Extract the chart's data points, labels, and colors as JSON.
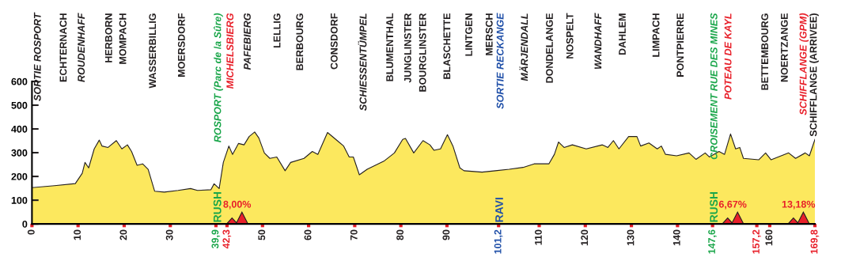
{
  "chart_data": {
    "type": "area",
    "x": [
      0,
      4.9,
      9.4,
      10.9,
      11.5,
      12.3,
      13.5,
      14.6,
      15.2,
      16.5,
      18.3,
      19.5,
      20.7,
      21.6,
      22.8,
      24.0,
      25.2,
      26.6,
      28.7,
      31.7,
      34.4,
      35.9,
      38.8,
      39.5,
      40.6,
      41.5,
      42.7,
      43.5,
      44.8,
      46.0,
      47.1,
      48.3,
      49.2,
      50.4,
      51.6,
      53.1,
      54.9,
      56.1,
      59.0,
      60.8,
      62.0,
      64.1,
      66.2,
      67.6,
      68.8,
      69.7,
      71.0,
      72.7,
      76.3,
      78.6,
      80.4,
      81.0,
      82.8,
      84.8,
      86.3,
      87.2,
      88.6,
      90.1,
      91.3,
      92.8,
      93.7,
      97.6,
      100.5,
      103.5,
      106.5,
      108.9,
      112.1,
      113.3,
      114.2,
      115.4,
      117.2,
      120.2,
      123.7,
      124.9,
      126.1,
      127.3,
      129.4,
      131.2,
      132.0,
      133.8,
      135.6,
      136.5,
      137.4,
      139.8,
      142.5,
      144.0,
      146.0,
      146.9,
      149.0,
      150.2,
      151.5,
      152.6,
      153.5,
      154.3,
      157.6,
      159.1,
      160.3,
      164.1,
      165.6,
      167.7,
      168.6,
      169.8
    ],
    "values": [
      153,
      161,
      170,
      213,
      259,
      236,
      316,
      353,
      328,
      322,
      351,
      316,
      333,
      305,
      247,
      253,
      230,
      138,
      134,
      141,
      149,
      141,
      144,
      169,
      149,
      259,
      328,
      293,
      339,
      333,
      368,
      387,
      362,
      299,
      276,
      282,
      224,
      259,
      276,
      305,
      293,
      385,
      351,
      328,
      282,
      282,
      207,
      230,
      264,
      299,
      356,
      360,
      299,
      351,
      333,
      310,
      316,
      376,
      328,
      236,
      224,
      218,
      224,
      230,
      238,
      253,
      253,
      293,
      345,
      322,
      333,
      316,
      333,
      322,
      351,
      316,
      368,
      368,
      328,
      341,
      316,
      328,
      293,
      287,
      299,
      272,
      299,
      282,
      305,
      293,
      379,
      316,
      322,
      276,
      270,
      299,
      270,
      299,
      276,
      299,
      287,
      356
    ],
    "color": "#fce85e",
    "xlim": [
      0,
      169.8
    ],
    "ylim": [
      0,
      600
    ],
    "xticks": [
      0,
      10,
      20,
      30,
      {
        "value": 39.9,
        "label": "39,9"
      },
      {
        "value": 42.3,
        "label": "42,3"
      },
      50,
      60,
      70,
      80,
      90,
      {
        "value": 101.2,
        "label": "101,2"
      },
      110,
      120,
      130,
      140,
      {
        "value": 147.6,
        "label": "147,6"
      },
      {
        "value": 157.2,
        "label": "157,2"
      },
      160,
      {
        "value": 169.8,
        "label": "169,8"
      }
    ],
    "yticks": [
      0,
      100,
      200,
      300,
      400,
      500,
      600
    ],
    "grid": false,
    "legend": false,
    "annotations": [
      "SORTIE ROSPORT",
      "ECHTERNACH",
      "ROUDENHAFF",
      "HERBORN",
      "MOMPACH",
      "WASSERBILLIG",
      "MOERSDORF",
      "ROSPORT (Parc de la Sûre)",
      "MICHELSBIERG",
      "PAFEBIERG",
      "LELLIG",
      "BERBOURG",
      "CONSDORF",
      "SCHIESSENTÜMPEL",
      "BLUMENTHAL",
      "JUNGLINSTER",
      "BOURGLINSTER",
      "BLASCHETTE",
      "LINTGEN",
      "MERSCH",
      "SORTIE RECKANGE",
      "MÄRJENDALL",
      "DONDELANGE",
      "NOSPELT",
      "WANDHAFF",
      "DAHLEM",
      "LIMPACH",
      "PONTPIERRE",
      "CROISEMENT RUE DES MINES",
      "POTEAU DE KAYL",
      "BETTEMBOURG",
      "NOERTZANGE",
      "SCHIFFLANGE (GPM)",
      "SCHIFFLANGE (ARRIVEE)",
      "RUSH",
      "RAVI",
      "RUSH",
      "8,00%",
      "6,67%",
      "13,18%"
    ]
  }
}
